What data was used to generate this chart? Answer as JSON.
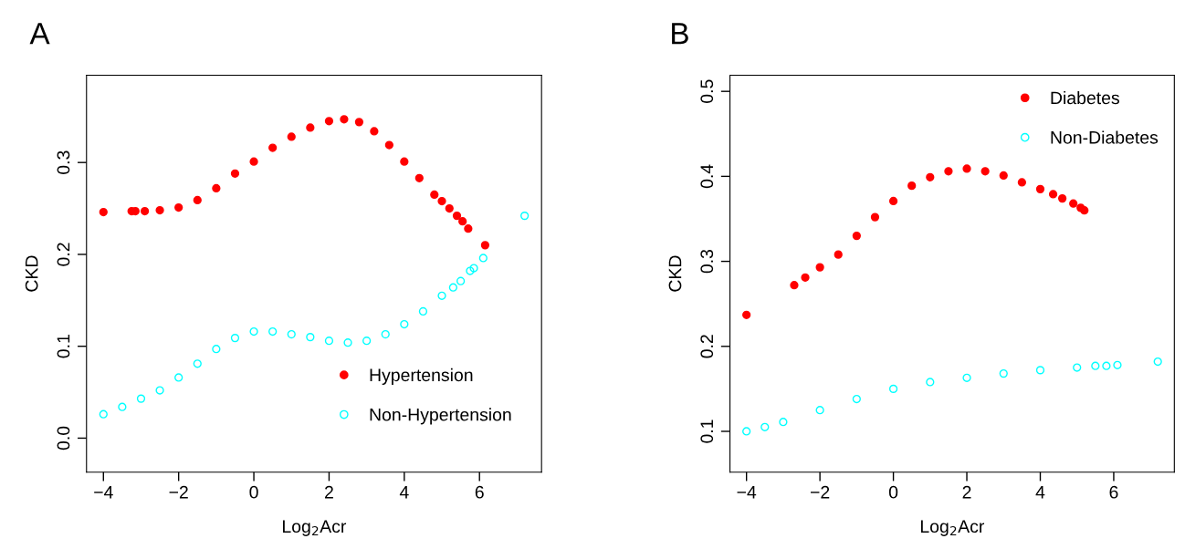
{
  "chart_data": [
    {
      "type": "scatter",
      "title": "A",
      "xlabel": "Log$_{2}$Acr",
      "ylabel": "CKD",
      "xlim": [
        -4.45,
        7.65
      ],
      "ylim": [
        -0.037,
        0.395
      ],
      "xticks": [
        -4,
        -2,
        0,
        2,
        4,
        6
      ],
      "yticks": [
        {
          "value": 0,
          "label": "0.0"
        },
        0.1,
        0.2,
        0.3
      ],
      "grid": false,
      "legend": "bottom right",
      "marker": "circle",
      "series": [
        {
          "name": "Hypertension",
          "color": "#ff0000",
          "x": [
            -4,
            -3.25,
            -3.15,
            -2.9,
            -2.5,
            -2,
            -1.5,
            -1,
            -0.5,
            0,
            0.5,
            1,
            1.5,
            2,
            2.4,
            2.8,
            3.2,
            3.6,
            4,
            4.4,
            4.8,
            5,
            5.2,
            5.4,
            5.55,
            5.7,
            6.15
          ],
          "values": [
            0.246,
            0.247,
            0.247,
            0.247,
            0.248,
            0.251,
            0.259,
            0.272,
            0.288,
            0.301,
            0.316,
            0.328,
            0.338,
            0.345,
            0.347,
            0.344,
            0.334,
            0.319,
            0.301,
            0.283,
            0.265,
            0.258,
            0.25,
            0.242,
            0.236,
            0.228,
            0.21
          ]
        },
        {
          "name": "Non-Hypertension",
          "color": "#00ffff",
          "x": [
            -4,
            -3.5,
            -3,
            -2.5,
            -2,
            -1.5,
            -1,
            -0.5,
            0,
            0.5,
            1,
            1.5,
            2,
            2.5,
            3,
            3.5,
            4,
            4.5,
            5,
            5.3,
            5.5,
            5.75,
            5.85,
            6.1,
            7.2
          ],
          "values": [
            0.026,
            0.034,
            0.043,
            0.052,
            0.066,
            0.081,
            0.097,
            0.109,
            0.116,
            0.116,
            0.113,
            0.11,
            0.106,
            0.104,
            0.106,
            0.113,
            0.124,
            0.138,
            0.155,
            0.164,
            0.171,
            0.182,
            0.185,
            0.196,
            0.242
          ]
        }
      ]
    },
    {
      "type": "scatter",
      "title": "B",
      "xlabel": "Log$_{2}$Acr",
      "ylabel": "CKD",
      "xlim": [
        -4.45,
        7.65
      ],
      "ylim": [
        0.052,
        0.519
      ],
      "xticks": [
        -4,
        -2,
        0,
        2,
        4,
        6
      ],
      "yticks": [
        0.1,
        0.2,
        0.3,
        0.4,
        0.5
      ],
      "grid": false,
      "legend": "top right",
      "marker": "circle",
      "series": [
        {
          "name": "Diabetes",
          "color": "#ff0000",
          "x": [
            -4,
            -2.7,
            -2.4,
            -2,
            -1.5,
            -1,
            -0.5,
            0,
            0.5,
            1,
            1.5,
            2,
            2.5,
            3,
            3.5,
            4,
            4.35,
            4.6,
            4.9,
            5.1,
            5.2
          ],
          "values": [
            0.237,
            0.272,
            0.281,
            0.293,
            0.308,
            0.33,
            0.352,
            0.371,
            0.389,
            0.399,
            0.406,
            0.409,
            0.406,
            0.401,
            0.393,
            0.385,
            0.379,
            0.374,
            0.368,
            0.363,
            0.36
          ]
        },
        {
          "name": "Non-Diabetes",
          "color": "#00ffff",
          "x": [
            -4,
            -3.5,
            -3,
            -2,
            -1,
            0,
            1,
            2,
            3,
            4,
            5,
            5.5,
            5.8,
            6.1,
            7.2
          ],
          "values": [
            0.1,
            0.105,
            0.111,
            0.125,
            0.138,
            0.15,
            0.158,
            0.163,
            0.168,
            0.172,
            0.175,
            0.177,
            0.177,
            0.178,
            0.182
          ]
        }
      ]
    }
  ]
}
